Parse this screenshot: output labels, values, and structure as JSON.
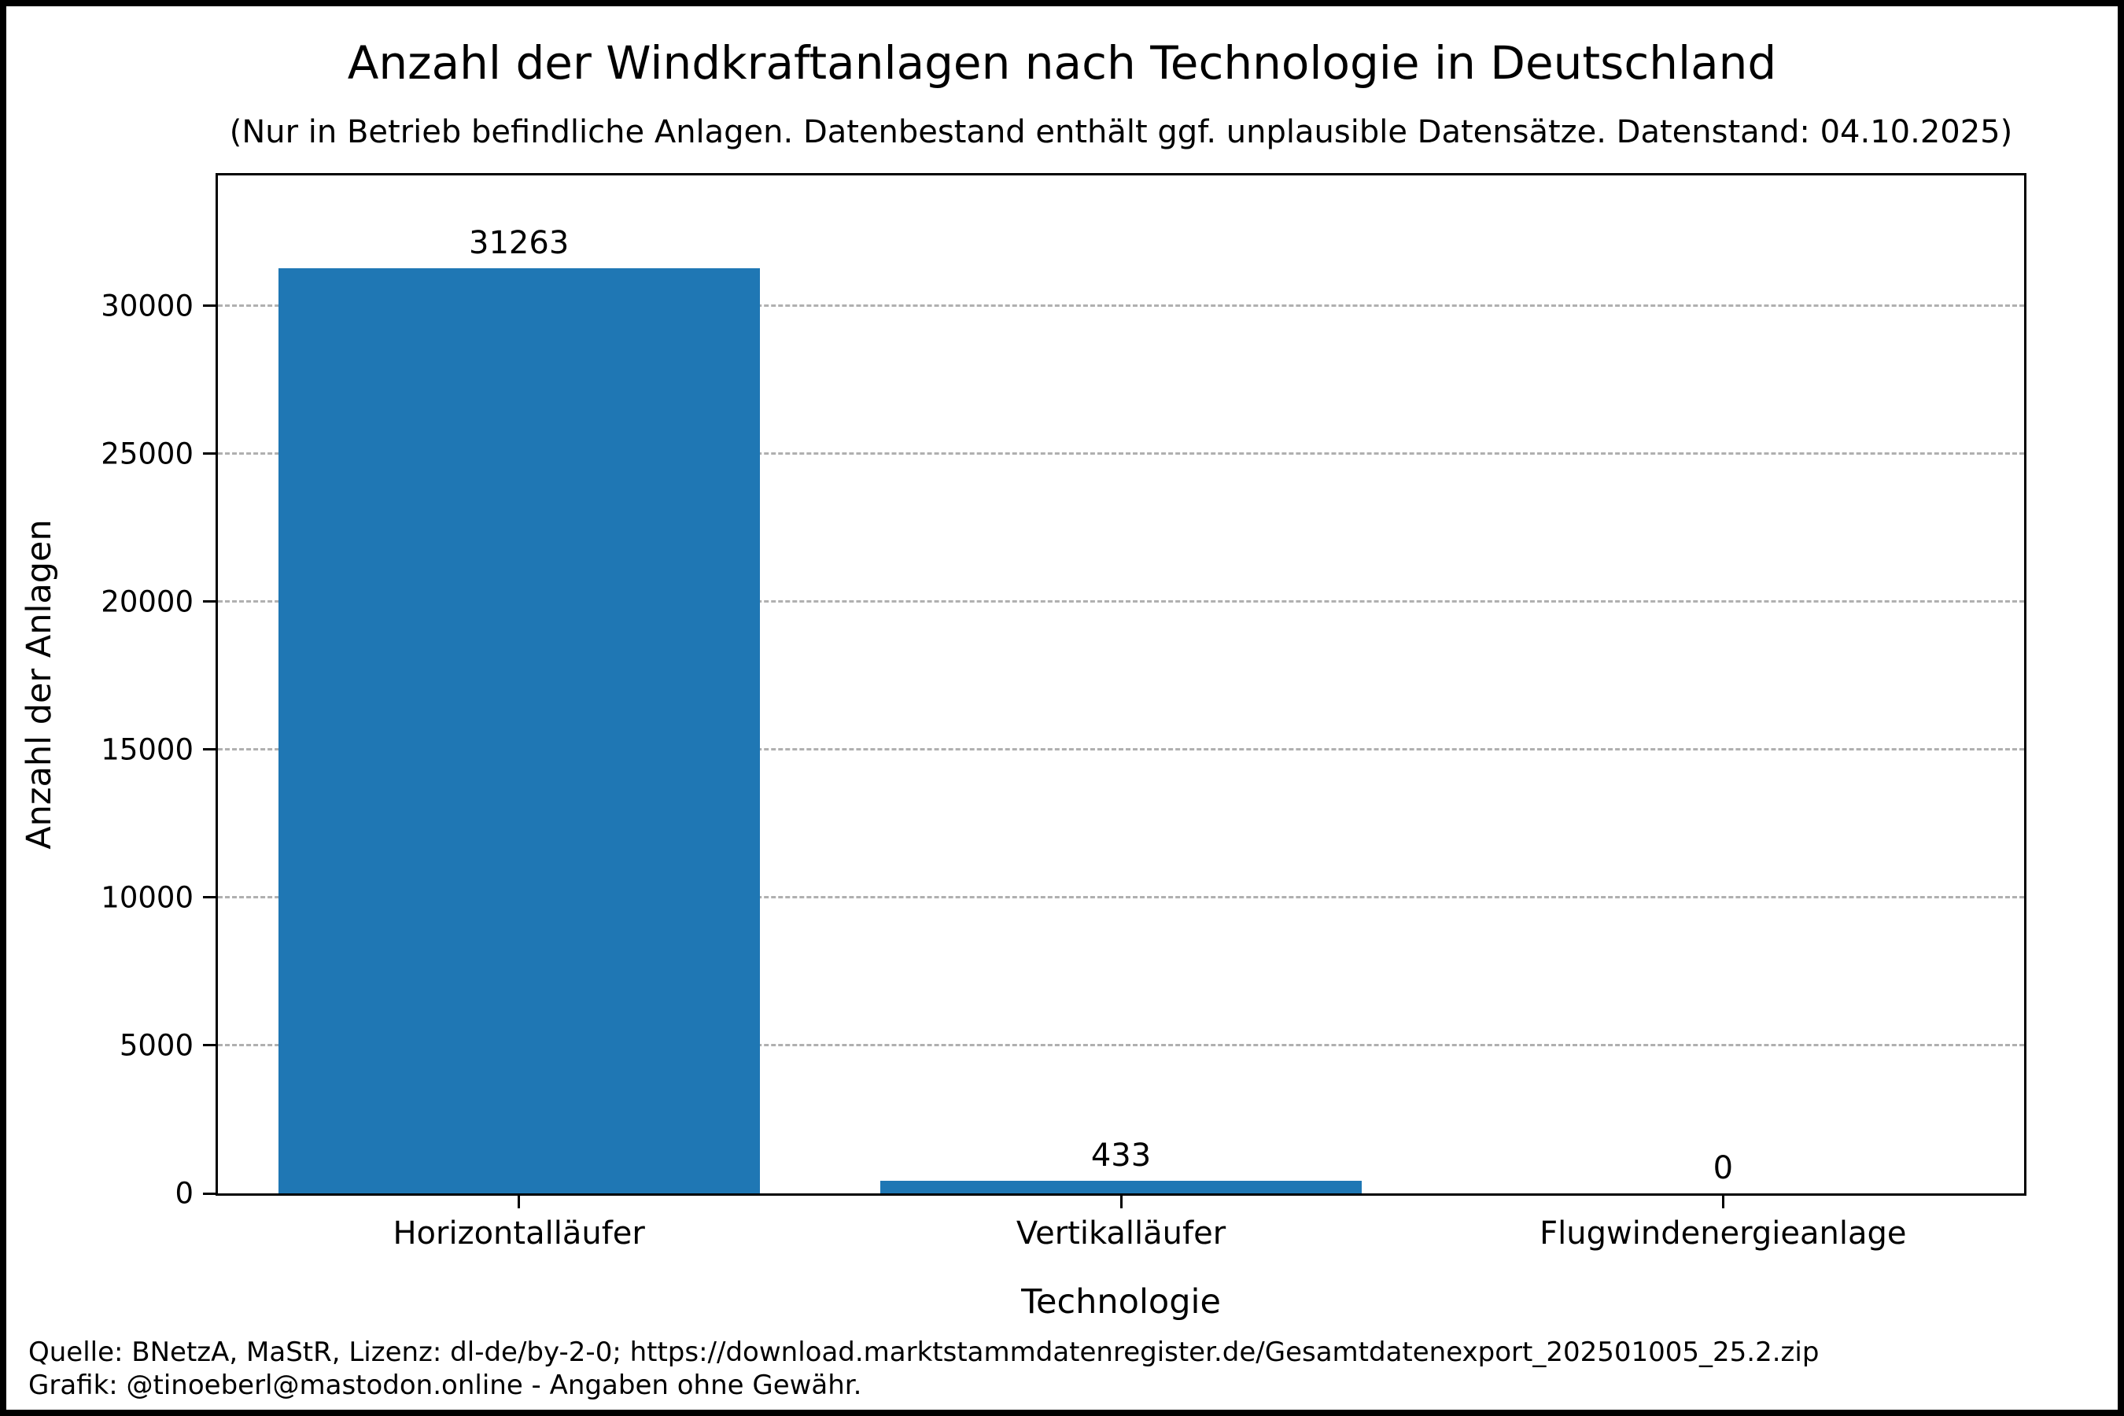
{
  "title": "Anzahl der Windkraftanlagen nach Technologie in Deutschland",
  "subtitle": "(Nur in Betrieb befindliche Anlagen. Datenbestand enthält ggf. unplausible Datensätze. Datenstand: 04.10.2025)",
  "footer": {
    "line1": "Quelle: BNetzA, MaStR, Lizenz: dl-de/by-2-0; https://download.marktstammdatenregister.de/Gesamtdatenexport_202501005_25.2.zip",
    "line2": "Grafik: @tinoeberl@mastodon.online - Angaben ohne Gewähr."
  },
  "chart_data": {
    "type": "bar",
    "title": "Anzahl der Windkraftanlagen nach Technologie in Deutschland",
    "subtitle": "(Nur in Betrieb befindliche Anlagen. Datenbestand enthält ggf. unplausible Datensätze. Datenstand: 04.10.2025)",
    "categories": [
      "Horizontalläufer",
      "Vertikalläufer",
      "Flugwindenergieanlage"
    ],
    "values": [
      31263,
      433,
      0
    ],
    "bar_value_labels": [
      "31263",
      "433",
      "0"
    ],
    "xlabel": "Technologie",
    "ylabel": "Anzahl der Anlagen",
    "yticks": [
      0,
      5000,
      10000,
      15000,
      20000,
      25000,
      30000
    ],
    "ytick_labels": [
      "0",
      "5000",
      "10000",
      "15000",
      "20000",
      "25000",
      "30000"
    ],
    "ylim": [
      0,
      34400
    ],
    "bar_color": "#1f77b4",
    "grid": "horizontal-dashed",
    "gridline_color": "#b0b0b0",
    "legend": "none"
  }
}
